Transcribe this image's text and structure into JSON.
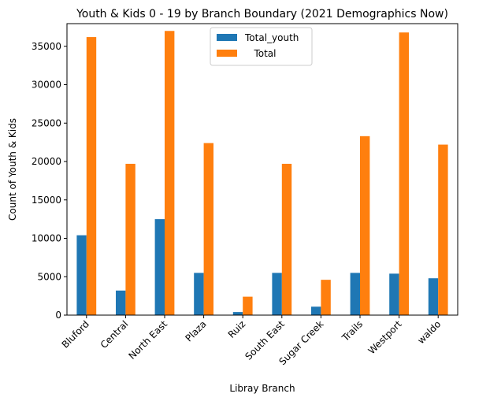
{
  "chart_data": {
    "type": "bar",
    "title": "Youth & Kids 0 - 19 by Branch Boundary (2021 Demographics Now)",
    "xlabel": "Libray Branch",
    "ylabel": "Count of Youth & Kids",
    "categories": [
      "Bluford",
      "Central",
      "North East",
      "Plaza",
      "Ruiz",
      "South East",
      "Sugar Creek",
      "Trails",
      "Westport",
      "waldo"
    ],
    "series": [
      {
        "name": "Total_youth",
        "color": "#1f77b4",
        "values": [
          10400,
          3200,
          12500,
          5500,
          400,
          5500,
          1100,
          5500,
          5400,
          4800
        ]
      },
      {
        "name": "   Total",
        "color": "#ff7f0e",
        "values": [
          36200,
          19700,
          37000,
          22400,
          2400,
          19700,
          4600,
          23300,
          36800,
          22200
        ]
      }
    ],
    "ylim": [
      0,
      37950
    ],
    "yticks": [
      0,
      5000,
      10000,
      15000,
      20000,
      25000,
      30000,
      35000
    ],
    "ytick_labels": [
      "0",
      "5000",
      "10000",
      "15000",
      "20000",
      "25000",
      "30000",
      "35000"
    ],
    "grid": false,
    "legend_position": "upper-center"
  }
}
